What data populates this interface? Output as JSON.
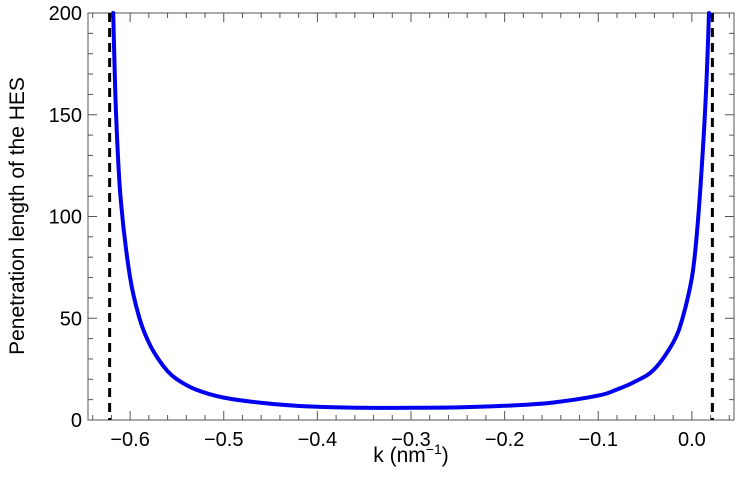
{
  "chart_data": {
    "type": "line",
    "title": "",
    "xlabel": "k (nm",
    "xlabel_superscript": "−1",
    "xlabel_suffix": ")",
    "ylabel": "Penetration length of the HES",
    "xlim": [
      -0.645,
      0.045
    ],
    "ylim": [
      0,
      200
    ],
    "grid": false,
    "legend": "none",
    "x_ticks": [
      {
        "value": -0.6,
        "label": "−0.6"
      },
      {
        "value": -0.5,
        "label": "−0.5"
      },
      {
        "value": -0.4,
        "label": "−0.4"
      },
      {
        "value": -0.3,
        "label": "−0.3"
      },
      {
        "value": -0.2,
        "label": "−0.2"
      },
      {
        "value": -0.1,
        "label": "−0.1"
      },
      {
        "value": 0.0,
        "label": "0.0"
      }
    ],
    "y_ticks": [
      {
        "value": 0,
        "label": "0"
      },
      {
        "value": 50,
        "label": "50"
      },
      {
        "value": 100,
        "label": "100"
      },
      {
        "value": 150,
        "label": "150"
      },
      {
        "value": 200,
        "label": "200"
      }
    ],
    "series": [
      {
        "color": "#0000ee",
        "x": [
          -0.6181,
          -0.615,
          -0.61,
          -0.6,
          -0.59,
          -0.58,
          -0.57,
          -0.56,
          -0.55,
          -0.53,
          -0.5,
          -0.45,
          -0.4,
          -0.35,
          -0.3,
          -0.25,
          -0.2,
          -0.15,
          -0.1,
          -0.08,
          -0.06,
          -0.04,
          -0.02,
          -0.01,
          0.0,
          0.005,
          0.01,
          0.015,
          0.0183
        ],
        "y": [
          200,
          150,
          108,
          70,
          50,
          38,
          30,
          24,
          20,
          15,
          11,
          8,
          6.5,
          6,
          6,
          6.2,
          7,
          8.5,
          12,
          15,
          19,
          25,
          38,
          50,
          70,
          90,
          120,
          160,
          200
        ]
      }
    ],
    "asymptotes": [
      {
        "x": -0.6219,
        "color": "#000000",
        "style": "dashed"
      },
      {
        "x": 0.0219,
        "color": "#000000",
        "style": "dashed"
      }
    ]
  }
}
